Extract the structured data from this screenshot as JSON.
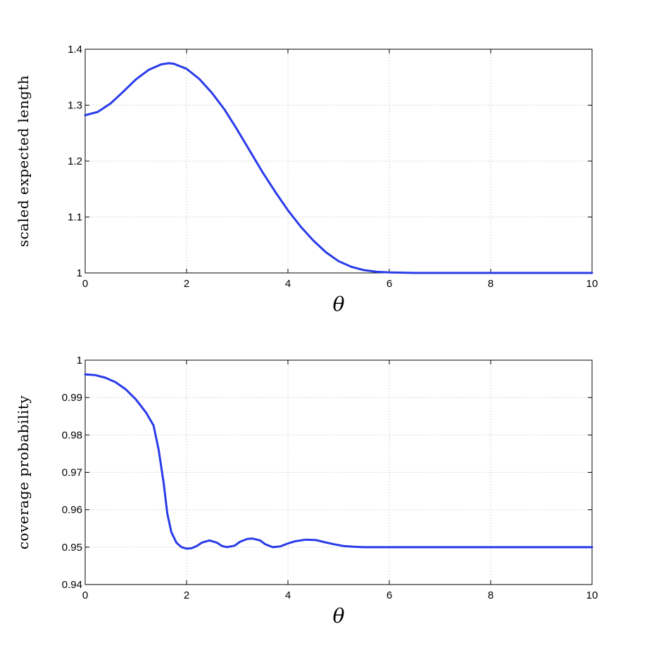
{
  "figure": {
    "line_color": "#2a3be8"
  },
  "chart_data": [
    {
      "type": "line",
      "xlabel": "θ",
      "ylabel": "scaled expected length",
      "xlim": [
        0,
        10
      ],
      "ylim": [
        1,
        1.4
      ],
      "xticks": [
        0,
        2,
        4,
        6,
        8,
        10
      ],
      "xtick_labels": [
        "0",
        "2",
        "4",
        "6",
        "8",
        "10"
      ],
      "yticks": [
        1,
        1.1,
        1.2,
        1.3,
        1.4
      ],
      "ytick_labels": [
        "1",
        "1.1",
        "1.2",
        "1.3",
        "1.4"
      ],
      "grid": true,
      "series": [
        {
          "x": [
            0,
            0.25,
            0.5,
            0.75,
            1.0,
            1.25,
            1.5,
            1.65,
            1.75,
            2.0,
            2.25,
            2.5,
            2.75,
            3.0,
            3.25,
            3.5,
            3.75,
            4.0,
            4.25,
            4.5,
            4.75,
            5.0,
            5.25,
            5.5,
            5.75,
            6.0,
            6.5,
            7.0,
            8.0,
            9.0,
            10.0
          ],
          "values": [
            1.282,
            1.288,
            1.303,
            1.324,
            1.346,
            1.363,
            1.373,
            1.375,
            1.374,
            1.365,
            1.347,
            1.322,
            1.292,
            1.256,
            1.218,
            1.18,
            1.145,
            1.112,
            1.083,
            1.058,
            1.037,
            1.021,
            1.011,
            1.005,
            1.002,
            1.001,
            1.0,
            1.0,
            1.0,
            1.0,
            1.0
          ]
        }
      ]
    },
    {
      "type": "line",
      "xlabel": "θ",
      "ylabel": "coverage probability",
      "xlim": [
        0,
        10
      ],
      "ylim": [
        0.94,
        1
      ],
      "xticks": [
        0,
        2,
        4,
        6,
        8,
        10
      ],
      "xtick_labels": [
        "0",
        "2",
        "4",
        "6",
        "8",
        "10"
      ],
      "yticks": [
        0.94,
        0.95,
        0.96,
        0.97,
        0.98,
        0.99,
        1
      ],
      "ytick_labels": [
        "0.94",
        "0.95",
        "0.96",
        "0.97",
        "0.98",
        "0.99",
        "1"
      ],
      "grid": true,
      "series": [
        {
          "x": [
            0,
            0.2,
            0.4,
            0.6,
            0.8,
            1.0,
            1.2,
            1.35,
            1.45,
            1.55,
            1.62,
            1.7,
            1.8,
            1.9,
            2.0,
            2.1,
            2.2,
            2.3,
            2.45,
            2.6,
            2.7,
            2.8,
            2.95,
            3.05,
            3.2,
            3.3,
            3.45,
            3.55,
            3.7,
            3.85,
            4.0,
            4.15,
            4.35,
            4.55,
            4.7,
            4.9,
            5.1,
            5.3,
            5.5,
            5.7,
            6.0,
            7.0,
            8.0,
            9.0,
            10.0
          ],
          "values": [
            0.9962,
            0.996,
            0.9953,
            0.9941,
            0.9922,
            0.9895,
            0.986,
            0.9825,
            0.976,
            0.967,
            0.959,
            0.954,
            0.9512,
            0.95,
            0.9496,
            0.9497,
            0.9503,
            0.9512,
            0.9518,
            0.9512,
            0.9503,
            0.95,
            0.9504,
            0.9514,
            0.9522,
            0.9523,
            0.9518,
            0.9508,
            0.95,
            0.9502,
            0.951,
            0.9516,
            0.952,
            0.9519,
            0.9514,
            0.9508,
            0.9503,
            0.9501,
            0.95,
            0.95,
            0.95,
            0.95,
            0.95,
            0.95,
            0.95
          ]
        }
      ]
    }
  ]
}
